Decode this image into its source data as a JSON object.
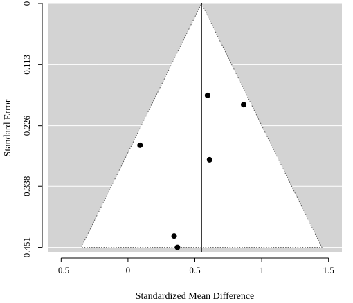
{
  "chart_data": {
    "type": "scatter",
    "title": "",
    "xlabel": "Standardized Mean Difference",
    "ylabel": "Standard Error",
    "xlim": [
      -0.6,
      1.6
    ],
    "ylim": [
      0,
      0.4605
    ],
    "y_reversed": true,
    "grid": true,
    "x_ticks": [
      -0.5,
      0,
      0.5,
      1,
      1.5
    ],
    "x_tick_labels": [
      "−0.5",
      "0",
      "0.5",
      "1",
      "1.5"
    ],
    "y_ticks": [
      0,
      0.113,
      0.226,
      0.338,
      0.451
    ],
    "y_tick_labels": [
      "0",
      "0.113",
      "0.226",
      "0.338",
      "0.451"
    ],
    "summary_estimate": 0.55,
    "funnel": {
      "apex_x": 0.55,
      "apex_se": 0,
      "bottom_se": 0.451,
      "left_x": -0.35,
      "right_x": 1.45
    },
    "points": [
      {
        "x": 0.09,
        "y": 0.262
      },
      {
        "x": 0.345,
        "y": 0.43
      },
      {
        "x": 0.37,
        "y": 0.451
      },
      {
        "x": 0.595,
        "y": 0.17
      },
      {
        "x": 0.61,
        "y": 0.289
      },
      {
        "x": 0.865,
        "y": 0.187
      }
    ],
    "colors": {
      "background_region": "#d3d3d3",
      "funnel_fill": "#ffffff",
      "points": "#000000",
      "grid": "#ffffff"
    }
  }
}
